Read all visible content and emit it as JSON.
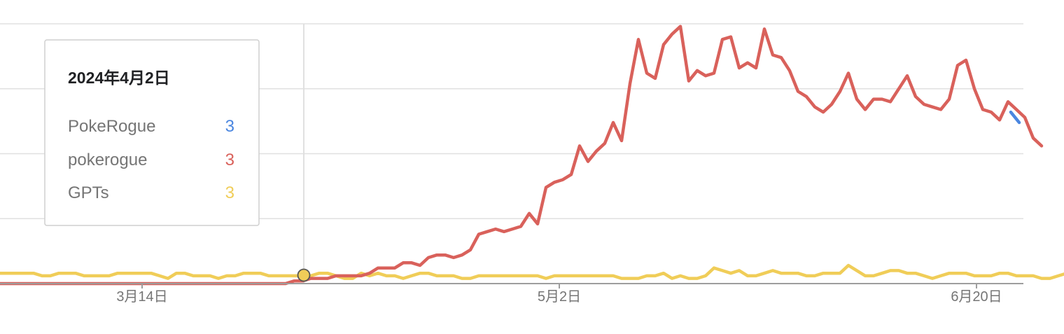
{
  "chart_data": {
    "type": "line",
    "x_ticks": [
      "3月14日",
      "5月2日",
      "6月20日"
    ],
    "ylim": [
      0,
      100
    ],
    "grid": true,
    "series": [
      {
        "name": "PokeRogue",
        "color": "#4a86e0",
        "tooltip_value": "3",
        "values": [
          66,
          62
        ]
      },
      {
        "name": "pokerogue",
        "color": "#d9615b",
        "tooltip_value": "3",
        "values": [
          0,
          0,
          0,
          0,
          0,
          0,
          0,
          0,
          0,
          0,
          0,
          0,
          0,
          0,
          0,
          0,
          0,
          0,
          0,
          0,
          0,
          0,
          0,
          0,
          0,
          0,
          0,
          0,
          0,
          0,
          0,
          0,
          0,
          0,
          0,
          1,
          1,
          2,
          2,
          2,
          3,
          3,
          3,
          3,
          4,
          6,
          6,
          6,
          8,
          8,
          7,
          10,
          11,
          11,
          10,
          11,
          13,
          19,
          20,
          21,
          20,
          21,
          22,
          27,
          23,
          37,
          39,
          40,
          42,
          53,
          47,
          51,
          54,
          62,
          55,
          77,
          94,
          81,
          79,
          92,
          96,
          99,
          78,
          82,
          80,
          81,
          94,
          95,
          83,
          85,
          83,
          98,
          88,
          87,
          82,
          74,
          72,
          68,
          66,
          69,
          74,
          81,
          71,
          67,
          71,
          71,
          70,
          75,
          80,
          72,
          69,
          68,
          67,
          71,
          84,
          86,
          75,
          67,
          66,
          63,
          70,
          67,
          64,
          56,
          53
        ]
      },
      {
        "name": "GPTs",
        "color": "#f0cd58",
        "tooltip_value": "3",
        "values": [
          4,
          4,
          4,
          4,
          4,
          3,
          3,
          4,
          4,
          4,
          3,
          3,
          3,
          3,
          4,
          4,
          4,
          4,
          4,
          3,
          2,
          4,
          4,
          3,
          3,
          3,
          2,
          3,
          3,
          4,
          4,
          4,
          3,
          3,
          3,
          3,
          3,
          3,
          4,
          4,
          3,
          2,
          2,
          4,
          3,
          4,
          3,
          3,
          2,
          3,
          4,
          4,
          3,
          3,
          3,
          2,
          2,
          3,
          3,
          3,
          3,
          3,
          3,
          3,
          3,
          2,
          3,
          3,
          3,
          3,
          3,
          3,
          3,
          3,
          2,
          2,
          2,
          3,
          3,
          4,
          2,
          3,
          2,
          2,
          3,
          6,
          5,
          4,
          5,
          3,
          3,
          4,
          5,
          4,
          4,
          4,
          3,
          3,
          4,
          4,
          4,
          7,
          5,
          3,
          3,
          4,
          5,
          5,
          4,
          4,
          3,
          2,
          3,
          4,
          4,
          4,
          3,
          3,
          3,
          4,
          4,
          3,
          3,
          3,
          2,
          2,
          3,
          4
        ]
      }
    ]
  },
  "tooltip": {
    "date": "2024年4月2日"
  }
}
